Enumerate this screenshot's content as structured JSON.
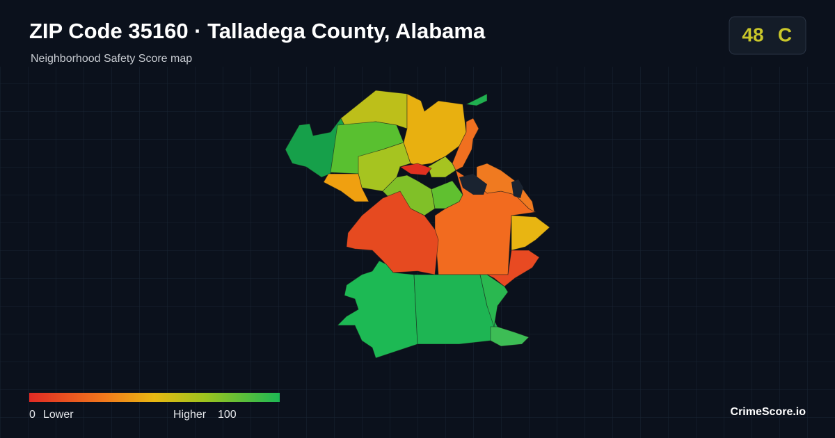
{
  "header": {
    "title": "ZIP Code 35160 · Talladega County, Alabama",
    "subtitle": "Neighborhood Safety Score map"
  },
  "score": {
    "value": "48",
    "grade": "C"
  },
  "legend": {
    "min": "0",
    "min_label": "Lower",
    "max_label": "Higher",
    "max": "100"
  },
  "brand": "CrimeScore.io"
}
